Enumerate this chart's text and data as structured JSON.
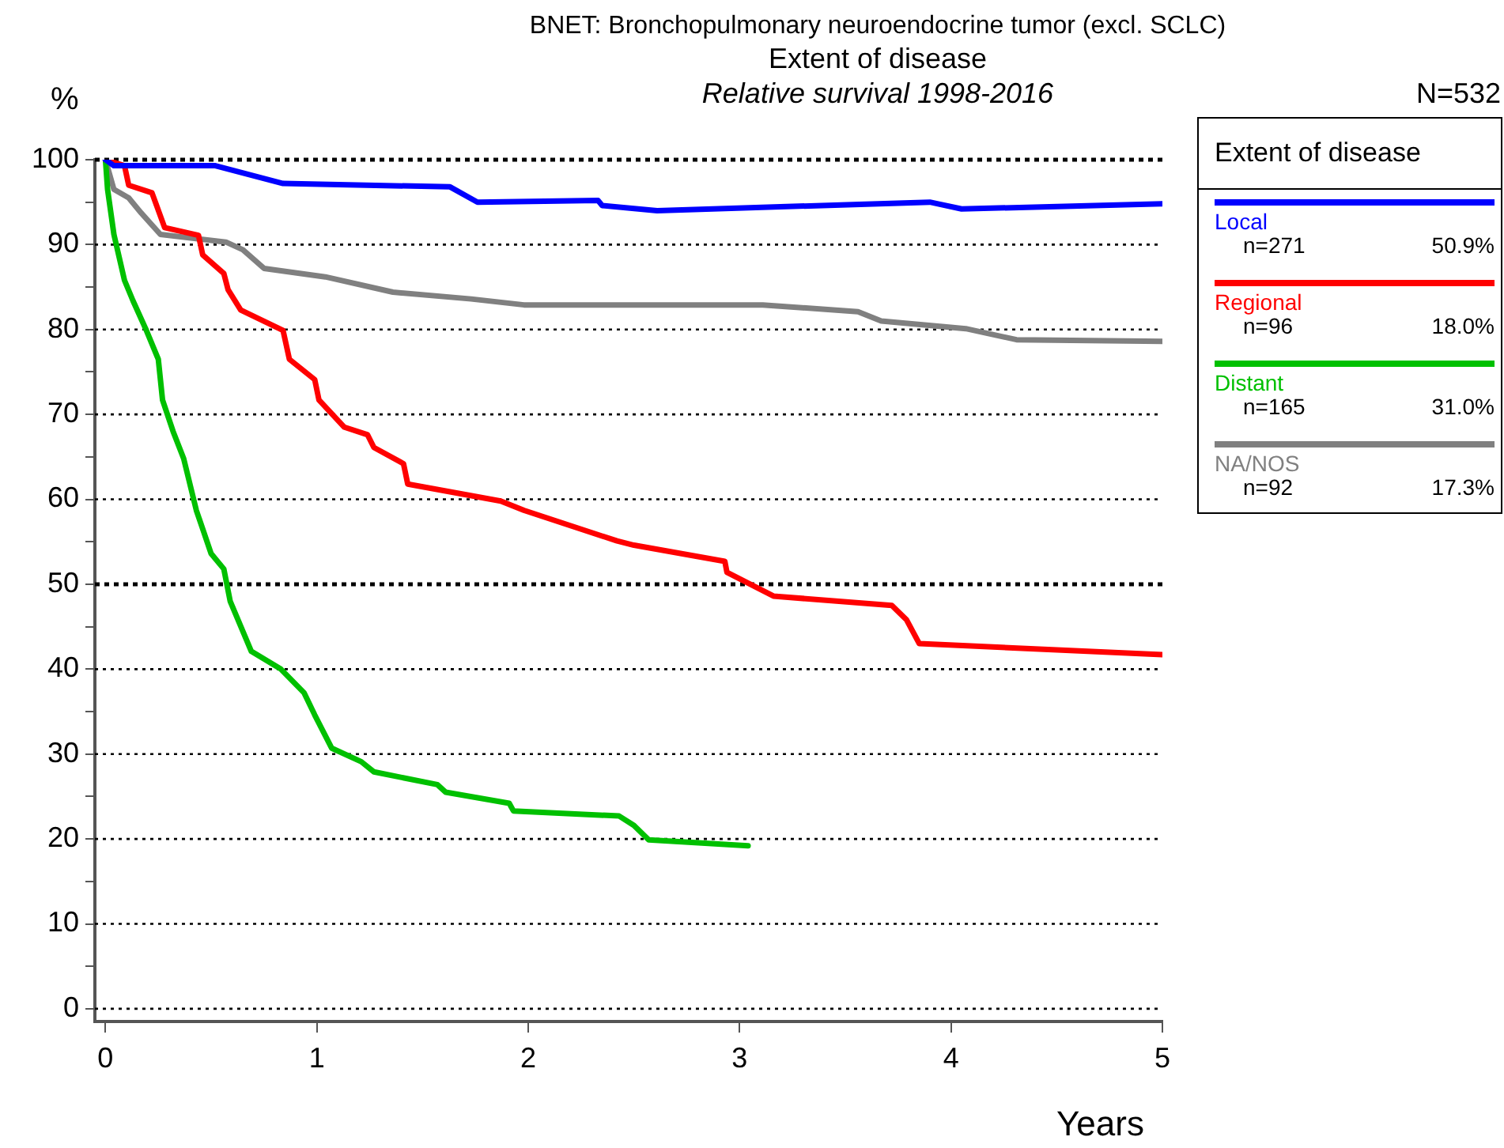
{
  "chart_data": {
    "type": "line",
    "title": "BNET: Bronchopulmonary neuroendocrine tumor (excl. SCLC)",
    "subtitle": "Extent of disease",
    "xlabel": "Years",
    "ylabel": "%",
    "legend_title": "Extent of disease",
    "legend": "top right",
    "grid": "y",
    "marker": "none",
    "line_style": "solid",
    "annotations": [
      "Relative survival 1998-2016",
      "N=532",
      "n=271",
      "50.9%",
      "n=96",
      "18.0%",
      "n=165",
      "31.0%",
      "n=92",
      "17.3%"
    ],
    "ref_lines": [
      {
        "axis": "y",
        "value": 50
      },
      {
        "axis": "y",
        "value": 100
      }
    ],
    "xlim": [
      -0.05,
      5
    ],
    "xticks": [
      0,
      1,
      2,
      3,
      4,
      5
    ],
    "ylim": [
      -1.5,
      100
    ],
    "yticks": [
      0,
      {
        "value": 5,
        "label": null
      },
      10,
      {
        "value": 15,
        "label": null
      },
      20,
      {
        "value": 25,
        "label": null
      },
      30,
      {
        "value": 35,
        "label": null
      },
      40,
      {
        "value": 45,
        "label": null
      },
      50,
      {
        "value": 55,
        "label": null
      },
      60,
      {
        "value": 65,
        "label": null
      },
      70,
      {
        "value": 75,
        "label": null
      },
      80,
      {
        "value": 85,
        "label": null
      },
      90,
      {
        "value": 95,
        "label": null
      },
      100
    ],
    "series": [
      {
        "name": "Local",
        "color": "#0000ff",
        "x": [
          0,
          0.04,
          0.52,
          0.84,
          1.63,
          1.76,
          2.33,
          2.35,
          2.61,
          3.9,
          4.05,
          5
        ],
        "values": [
          100,
          99.3,
          99.3,
          97.2,
          96.8,
          95.0,
          95.2,
          94.6,
          94.0,
          95.0,
          94.2,
          94.8
        ]
      },
      {
        "name": "Regional",
        "color": "#ff0000",
        "x": [
          0,
          0.09,
          0.11,
          0.22,
          0.28,
          0.44,
          0.46,
          0.56,
          0.58,
          0.64,
          0.84,
          0.87,
          0.99,
          1.01,
          1.13,
          1.24,
          1.27,
          1.41,
          1.43,
          1.87,
          1.98,
          2.42,
          2.5,
          2.93,
          2.94,
          3.16,
          3.72,
          3.79,
          3.85,
          5
        ],
        "values": [
          100,
          99.3,
          97.0,
          96.1,
          92.0,
          91.1,
          88.8,
          86.6,
          84.7,
          82.3,
          79.9,
          76.5,
          74.1,
          71.7,
          68.5,
          67.6,
          66.1,
          64.2,
          61.8,
          59.8,
          58.7,
          55.1,
          54.6,
          52.7,
          51.4,
          48.6,
          47.5,
          45.8,
          43.0,
          41.7
        ]
      },
      {
        "name": "Distant",
        "color": "#00c000",
        "x": [
          0,
          0.01,
          0.04,
          0.09,
          0.13,
          0.19,
          0.25,
          0.27,
          0.32,
          0.37,
          0.43,
          0.5,
          0.56,
          0.59,
          0.69,
          0.83,
          0.94,
          0.99,
          1.07,
          1.21,
          1.27,
          1.57,
          1.61,
          1.91,
          1.93,
          2.43,
          2.5,
          2.57,
          3.04
        ],
        "values": [
          100,
          96.5,
          91.2,
          85.8,
          83.4,
          80.1,
          76.5,
          71.7,
          68.0,
          64.8,
          58.7,
          53.6,
          51.8,
          48.0,
          42.1,
          40.0,
          37.2,
          34.6,
          30.7,
          29.1,
          27.9,
          26.4,
          25.5,
          24.2,
          23.3,
          22.7,
          21.6,
          19.9,
          19.2
        ]
      },
      {
        "name": "NA/NOS",
        "color": "#808080",
        "x": [
          0,
          0.04,
          0.11,
          0.17,
          0.26,
          0.57,
          0.65,
          0.75,
          1.04,
          1.36,
          1.73,
          1.98,
          3.11,
          3.56,
          3.67,
          4.07,
          4.31,
          5
        ],
        "values": [
          100,
          96.5,
          95.5,
          93.7,
          91.2,
          90.3,
          89.4,
          87.2,
          86.2,
          84.4,
          83.6,
          82.9,
          82.9,
          82.1,
          81.0,
          80.1,
          78.8,
          78.6
        ]
      }
    ]
  }
}
